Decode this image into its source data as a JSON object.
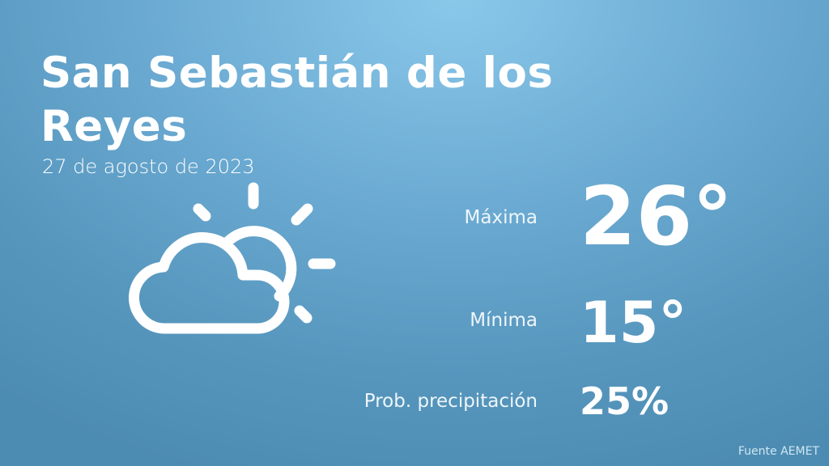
{
  "location": "San Sebastián de los Reyes",
  "date": "27 de agosto de 2023",
  "icon": "partly-cloudy-icon",
  "max": {
    "label": "Máxima",
    "value": "26°"
  },
  "min": {
    "label": "Mínima",
    "value": "15°"
  },
  "precip": {
    "label": "Prob. precipitación",
    "value": "25%"
  },
  "source": "Fuente AEMET",
  "colors": {
    "background_top": "#8ac8ea",
    "background_bottom": "#4d8cb2",
    "text": "#ffffff"
  }
}
